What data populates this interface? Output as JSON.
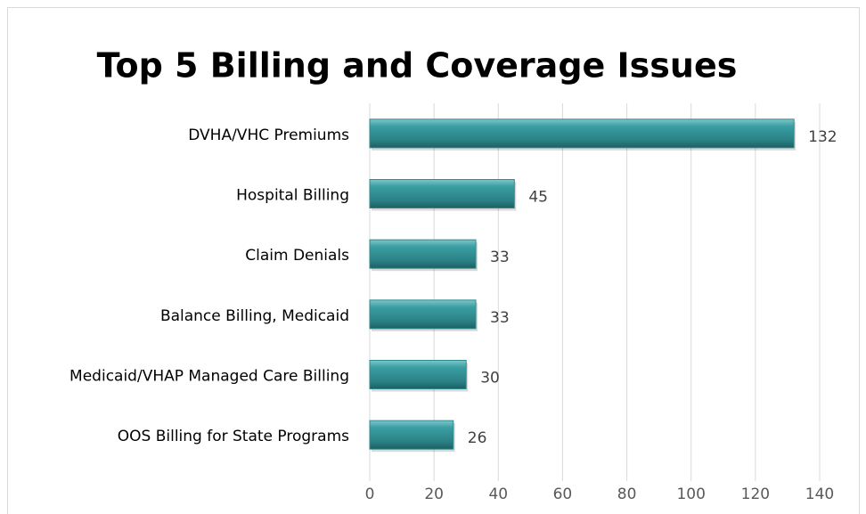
{
  "chart_data": {
    "type": "bar",
    "orientation": "horizontal",
    "title": "Top 5 Billing and Coverage Issues",
    "categories": [
      "DVHA/VHC Premiums",
      "Hospital Billing",
      "Claim Denials",
      "Balance Billing, Medicaid",
      "Medicaid/VHAP Managed Care Billing",
      "OOS Billing for State Programs"
    ],
    "values": [
      132,
      45,
      33,
      33,
      30,
      26
    ],
    "color": "#2e8b8f",
    "xlim": [
      0,
      140
    ],
    "xticks": [
      0,
      20,
      40,
      60,
      80,
      100,
      120,
      140
    ],
    "grid": true
  }
}
